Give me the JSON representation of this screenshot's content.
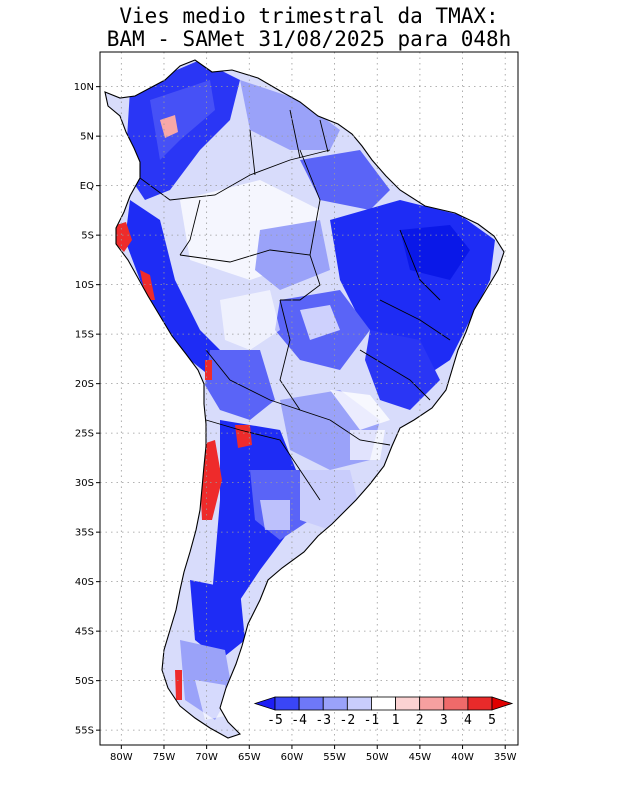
{
  "title": {
    "line1": "Vies medio trimestral da TMAX:",
    "line2": "BAM - SAMet 31/08/2025  para 048h"
  },
  "map": {
    "lon_range": [
      -82.5,
      -33.5
    ],
    "lat_range": [
      -56.5,
      13.5
    ],
    "lat_ticks": [
      {
        "value": 10,
        "label": "10N"
      },
      {
        "value": 5,
        "label": "5N"
      },
      {
        "value": 0,
        "label": "EQ"
      },
      {
        "value": -5,
        "label": "5S"
      },
      {
        "value": -10,
        "label": "10S"
      },
      {
        "value": -15,
        "label": "15S"
      },
      {
        "value": -20,
        "label": "20S"
      },
      {
        "value": -25,
        "label": "25S"
      },
      {
        "value": -30,
        "label": "30S"
      },
      {
        "value": -35,
        "label": "35S"
      },
      {
        "value": -40,
        "label": "40S"
      },
      {
        "value": -45,
        "label": "45S"
      },
      {
        "value": -50,
        "label": "50S"
      },
      {
        "value": -55,
        "label": "55S"
      }
    ],
    "lon_ticks": [
      {
        "value": -80,
        "label": "80W"
      },
      {
        "value": -75,
        "label": "75W"
      },
      {
        "value": -70,
        "label": "70W"
      },
      {
        "value": -65,
        "label": "65W"
      },
      {
        "value": -60,
        "label": "60W"
      },
      {
        "value": -55,
        "label": "55W"
      },
      {
        "value": -50,
        "label": "50W"
      },
      {
        "value": -45,
        "label": "45W"
      },
      {
        "value": -40,
        "label": "40W"
      },
      {
        "value": -35,
        "label": "35W"
      }
    ],
    "colors": {
      "ocean": "#ffffff",
      "land_base": "#d8dcfb",
      "strong_blue": "#1e2cf5",
      "mid_blue": "#5a64f7",
      "light_blue": "#9aa2f9",
      "white": "#ffffff",
      "light_red": "#f7a8a8",
      "red": "#ee2b2b",
      "border": "#000000",
      "grid": "#9a9a9a"
    }
  },
  "colorbar": {
    "labels": [
      "-5",
      "-4",
      "-3",
      "-2",
      "-1",
      "1",
      "2",
      "3",
      "4",
      "5"
    ],
    "colors": [
      "#1e1ef5",
      "#3a46f7",
      "#6e78f8",
      "#9aa2fa",
      "#c9cdfc",
      "#ffffff",
      "#fbd2d2",
      "#f6a0a0",
      "#ef6a6a",
      "#e82a2a",
      "#e00000"
    ]
  }
}
